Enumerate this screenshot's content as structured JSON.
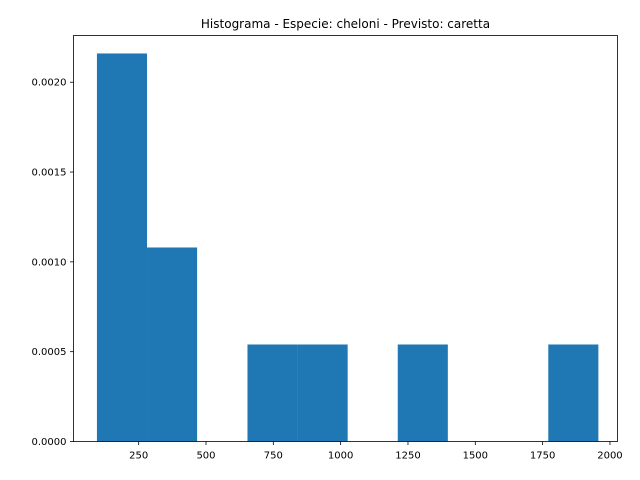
{
  "chart_data": {
    "type": "bar",
    "title": "Histograma - Especie: cheloni - Previsto: caretta",
    "xlabel": "",
    "ylabel": "",
    "bar_color": "#1f77b4",
    "xlim": [
      8,
      2028
    ],
    "ylim": [
      0,
      0.00226
    ],
    "bins": [
      {
        "x0": 95,
        "x1": 281,
        "value": 0.00216
      },
      {
        "x0": 281,
        "x1": 467,
        "value": 0.00108
      },
      {
        "x0": 467,
        "x1": 654,
        "value": 0.0
      },
      {
        "x0": 654,
        "x1": 840,
        "value": 0.00054
      },
      {
        "x0": 840,
        "x1": 1026,
        "value": 0.00054
      },
      {
        "x0": 1026,
        "x1": 1212,
        "value": 0.0
      },
      {
        "x0": 1212,
        "x1": 1398,
        "value": 0.00054
      },
      {
        "x0": 1398,
        "x1": 1585,
        "value": 0.0
      },
      {
        "x0": 1585,
        "x1": 1771,
        "value": 0.0
      },
      {
        "x0": 1771,
        "x1": 1957,
        "value": 0.00054
      }
    ],
    "xticks": [
      {
        "value": 250,
        "label": "250"
      },
      {
        "value": 500,
        "label": "500"
      },
      {
        "value": 750,
        "label": "750"
      },
      {
        "value": 1000,
        "label": "1000"
      },
      {
        "value": 1250,
        "label": "1250"
      },
      {
        "value": 1500,
        "label": "1500"
      },
      {
        "value": 1750,
        "label": "1750"
      },
      {
        "value": 2000,
        "label": "2000"
      }
    ],
    "yticks": [
      {
        "value": 0.0,
        "label": "0.0000"
      },
      {
        "value": 0.0005,
        "label": "0.0005"
      },
      {
        "value": 0.001,
        "label": "0.0010"
      },
      {
        "value": 0.0015,
        "label": "0.0015"
      },
      {
        "value": 0.002,
        "label": "0.0020"
      }
    ],
    "grid": false,
    "legend": "none"
  }
}
